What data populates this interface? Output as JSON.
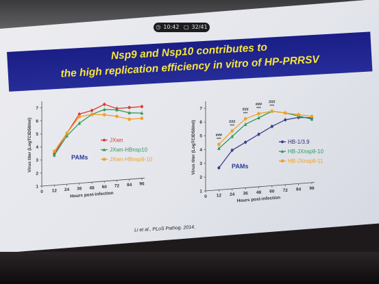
{
  "status": {
    "time": "10:42",
    "page": "32/41"
  },
  "slide": {
    "title_line1": "Nsp9 and Nsp10 contributes to",
    "title_line2": "the high replication efficiency in vitro of HP-PRRSV",
    "citation": "Li et al., PLoS Pathog. 2014."
  },
  "colors": {
    "banner": "#1f248e",
    "title_text": "#f6e53a"
  },
  "chart_data": [
    {
      "type": "line",
      "title": "",
      "xlabel": "Hours post-infection",
      "ylabel": "Virus titer (LogTCID50/ml)",
      "panel_label": "PAMs",
      "x": [
        12,
        24,
        36,
        48,
        60,
        72,
        84,
        96
      ],
      "xticks": [
        "0",
        "12",
        "24",
        "36",
        "48",
        "60",
        "72",
        "84",
        "96"
      ],
      "yticks": [
        "1",
        "2",
        "3",
        "4",
        "5",
        "6",
        "7"
      ],
      "xlim": [
        0,
        96
      ],
      "ylim": [
        1,
        7.3
      ],
      "legend_position": "right",
      "series": [
        {
          "name": "JXwn",
          "color": "#d93a2e",
          "marker": "circle",
          "values": [
            3.4,
            4.9,
            6.3,
            6.5,
            6.9,
            6.5,
            6.5,
            6.5
          ]
        },
        {
          "name": "JXwn-HBnsp10",
          "color": "#2e9a5a",
          "marker": "triangle",
          "values": [
            3.3,
            4.7,
            5.6,
            6.2,
            6.5,
            6.4,
            6.1,
            6.0
          ]
        },
        {
          "name": "JXwn-HBnsp9-10",
          "color": "#f0a020",
          "marker": "square",
          "values": [
            3.6,
            4.9,
            6.1,
            6.2,
            6.1,
            5.9,
            5.6,
            5.6
          ]
        }
      ]
    },
    {
      "type": "line",
      "title": "",
      "xlabel": "Hours post-infection",
      "ylabel": "Virus titer (LogTCID50/ml)",
      "panel_label": "PAMs",
      "x": [
        12,
        24,
        36,
        48,
        60,
        72,
        84,
        96
      ],
      "xticks": [
        "0",
        "12",
        "24",
        "36",
        "48",
        "60",
        "72",
        "84",
        "96"
      ],
      "yticks": [
        "1",
        "2",
        "3",
        "4",
        "5",
        "6",
        "7"
      ],
      "xlim": [
        0,
        96
      ],
      "ylim": [
        1,
        7.3
      ],
      "legend_position": "right",
      "series": [
        {
          "name": "HB-1/3.9",
          "color": "#3a3f8a",
          "marker": "circle",
          "values": [
            2.6,
            3.8,
            4.3,
            4.8,
            5.3,
            5.7,
            5.8,
            5.7
          ]
        },
        {
          "name": "HB-JXnsp9-10",
          "color": "#2e9a5a",
          "marker": "triangle",
          "values": [
            4.0,
            4.8,
            5.6,
            6.0,
            6.4,
            6.2,
            5.9,
            5.6
          ]
        },
        {
          "name": "HB-JXnsp9-11",
          "color": "#f0a020",
          "marker": "square",
          "values": [
            4.3,
            5.2,
            6.0,
            6.3,
            6.4,
            6.2,
            6.0,
            5.8
          ]
        }
      ],
      "annotations": [
        {
          "x": 12,
          "labels": [
            "###",
            "***"
          ]
        },
        {
          "x": 24,
          "labels": [
            "###",
            "***"
          ]
        },
        {
          "x": 36,
          "labels": [
            "###",
            "***"
          ]
        },
        {
          "x": 48,
          "labels": [
            "###",
            "***"
          ]
        },
        {
          "x": 60,
          "labels": [
            "###",
            "***"
          ]
        }
      ]
    }
  ]
}
